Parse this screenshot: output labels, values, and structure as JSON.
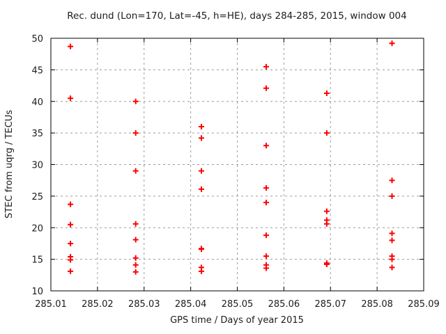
{
  "chart_data": {
    "type": "scatter",
    "title": "Rec. dund (Lon=170, Lat=-45, h=HE), days 284-285, 2015, window 004",
    "xlabel": "GPS time / Days of year 2015",
    "ylabel": "STEC from uqrg / TECUs",
    "xlim": [
      285.01,
      285.09
    ],
    "ylim": [
      10,
      50
    ],
    "x_ticks": [
      "285.01",
      "285.02",
      "285.03",
      "285.04",
      "285.05",
      "285.06",
      "285.07",
      "285.08",
      "285.09"
    ],
    "y_ticks": [
      "10",
      "15",
      "20",
      "25",
      "30",
      "35",
      "40",
      "45",
      "50"
    ],
    "grid": true,
    "legend_position": "none",
    "marker": {
      "glyph": "plus-icon",
      "color": "#ff0000",
      "size": 9
    },
    "series": [
      {
        "name": "STEC",
        "points": [
          [
            285.0142,
            48.7
          ],
          [
            285.0142,
            40.5
          ],
          [
            285.0142,
            23.7
          ],
          [
            285.0142,
            20.5
          ],
          [
            285.0142,
            17.5
          ],
          [
            285.0142,
            15.4
          ],
          [
            285.0142,
            14.9
          ],
          [
            285.0142,
            13.1
          ],
          [
            285.0282,
            40.0
          ],
          [
            285.0282,
            35.0
          ],
          [
            285.0282,
            29.0
          ],
          [
            285.0282,
            20.6
          ],
          [
            285.0282,
            18.1
          ],
          [
            285.0282,
            15.2
          ],
          [
            285.0282,
            14.1
          ],
          [
            285.0282,
            13.0
          ],
          [
            285.0423,
            36.0
          ],
          [
            285.0423,
            34.2
          ],
          [
            285.0423,
            29.0
          ],
          [
            285.0423,
            26.1
          ],
          [
            285.0423,
            16.7
          ],
          [
            285.0423,
            16.6
          ],
          [
            285.0423,
            13.7
          ],
          [
            285.0423,
            13.1
          ],
          [
            285.0562,
            45.5
          ],
          [
            285.0562,
            42.1
          ],
          [
            285.0562,
            33.0
          ],
          [
            285.0562,
            26.3
          ],
          [
            285.0562,
            24.0
          ],
          [
            285.0562,
            18.8
          ],
          [
            285.0562,
            15.5
          ],
          [
            285.0562,
            14.1
          ],
          [
            285.0562,
            13.6
          ],
          [
            285.0692,
            41.3
          ],
          [
            285.0692,
            35.0
          ],
          [
            285.0692,
            22.6
          ],
          [
            285.0692,
            21.2
          ],
          [
            285.0692,
            20.6
          ],
          [
            285.0692,
            14.4
          ],
          [
            285.0692,
            14.2
          ],
          [
            285.0832,
            49.2
          ],
          [
            285.0832,
            27.5
          ],
          [
            285.0832,
            25.0
          ],
          [
            285.0832,
            19.1
          ],
          [
            285.0832,
            18.0
          ],
          [
            285.0832,
            15.5
          ],
          [
            285.0832,
            15.0
          ],
          [
            285.0832,
            13.7
          ]
        ]
      }
    ]
  },
  "colors": {
    "background": "#ffffff",
    "border": "#000000",
    "grid": "#9c9c9c",
    "tick": "#000000",
    "text": "#1c1c1c",
    "marker": "#ff0000"
  }
}
